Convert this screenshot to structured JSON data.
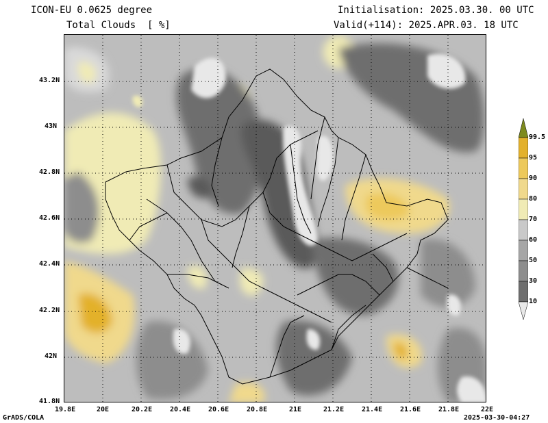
{
  "header": {
    "model": "ICON-EU 0.0625 degree",
    "variable": "Total Clouds  [ %]",
    "initialisation": "Initialisation: 2025.03.30. 00 UTC",
    "valid": "Valid(+114): 2025.APR.03. 18 UTC"
  },
  "footer": {
    "credit": "GrADS/COLA",
    "timestamp": "2025-03-30-04:27"
  },
  "axes": {
    "lon_ticks": [
      "19.8E",
      "20E",
      "20.2E",
      "20.4E",
      "20.6E",
      "20.8E",
      "21E",
      "21.2E",
      "21.4E",
      "21.6E",
      "21.8E",
      "22E"
    ],
    "lat_ticks": [
      "43.2N",
      "43N",
      "42.8N",
      "42.6N",
      "42.4N",
      "42.2N",
      "42N",
      "41.8N"
    ],
    "lon_range": [
      19.8,
      22.0
    ],
    "lat_range": [
      41.8,
      43.4
    ]
  },
  "colorbar": {
    "levels": [
      "99.5",
      "95",
      "90",
      "80",
      "70",
      "60",
      "50",
      "30",
      "10"
    ],
    "colors": [
      "#7d8a1e",
      "#e3b12c",
      "#edc95b",
      "#f0d98c",
      "#f0ebb5",
      "#c9c9c9",
      "#a6a6a6",
      "#8d8d8d",
      "#6e6e6e",
      "#4f4f4f",
      "#e8e8e8"
    ]
  }
}
